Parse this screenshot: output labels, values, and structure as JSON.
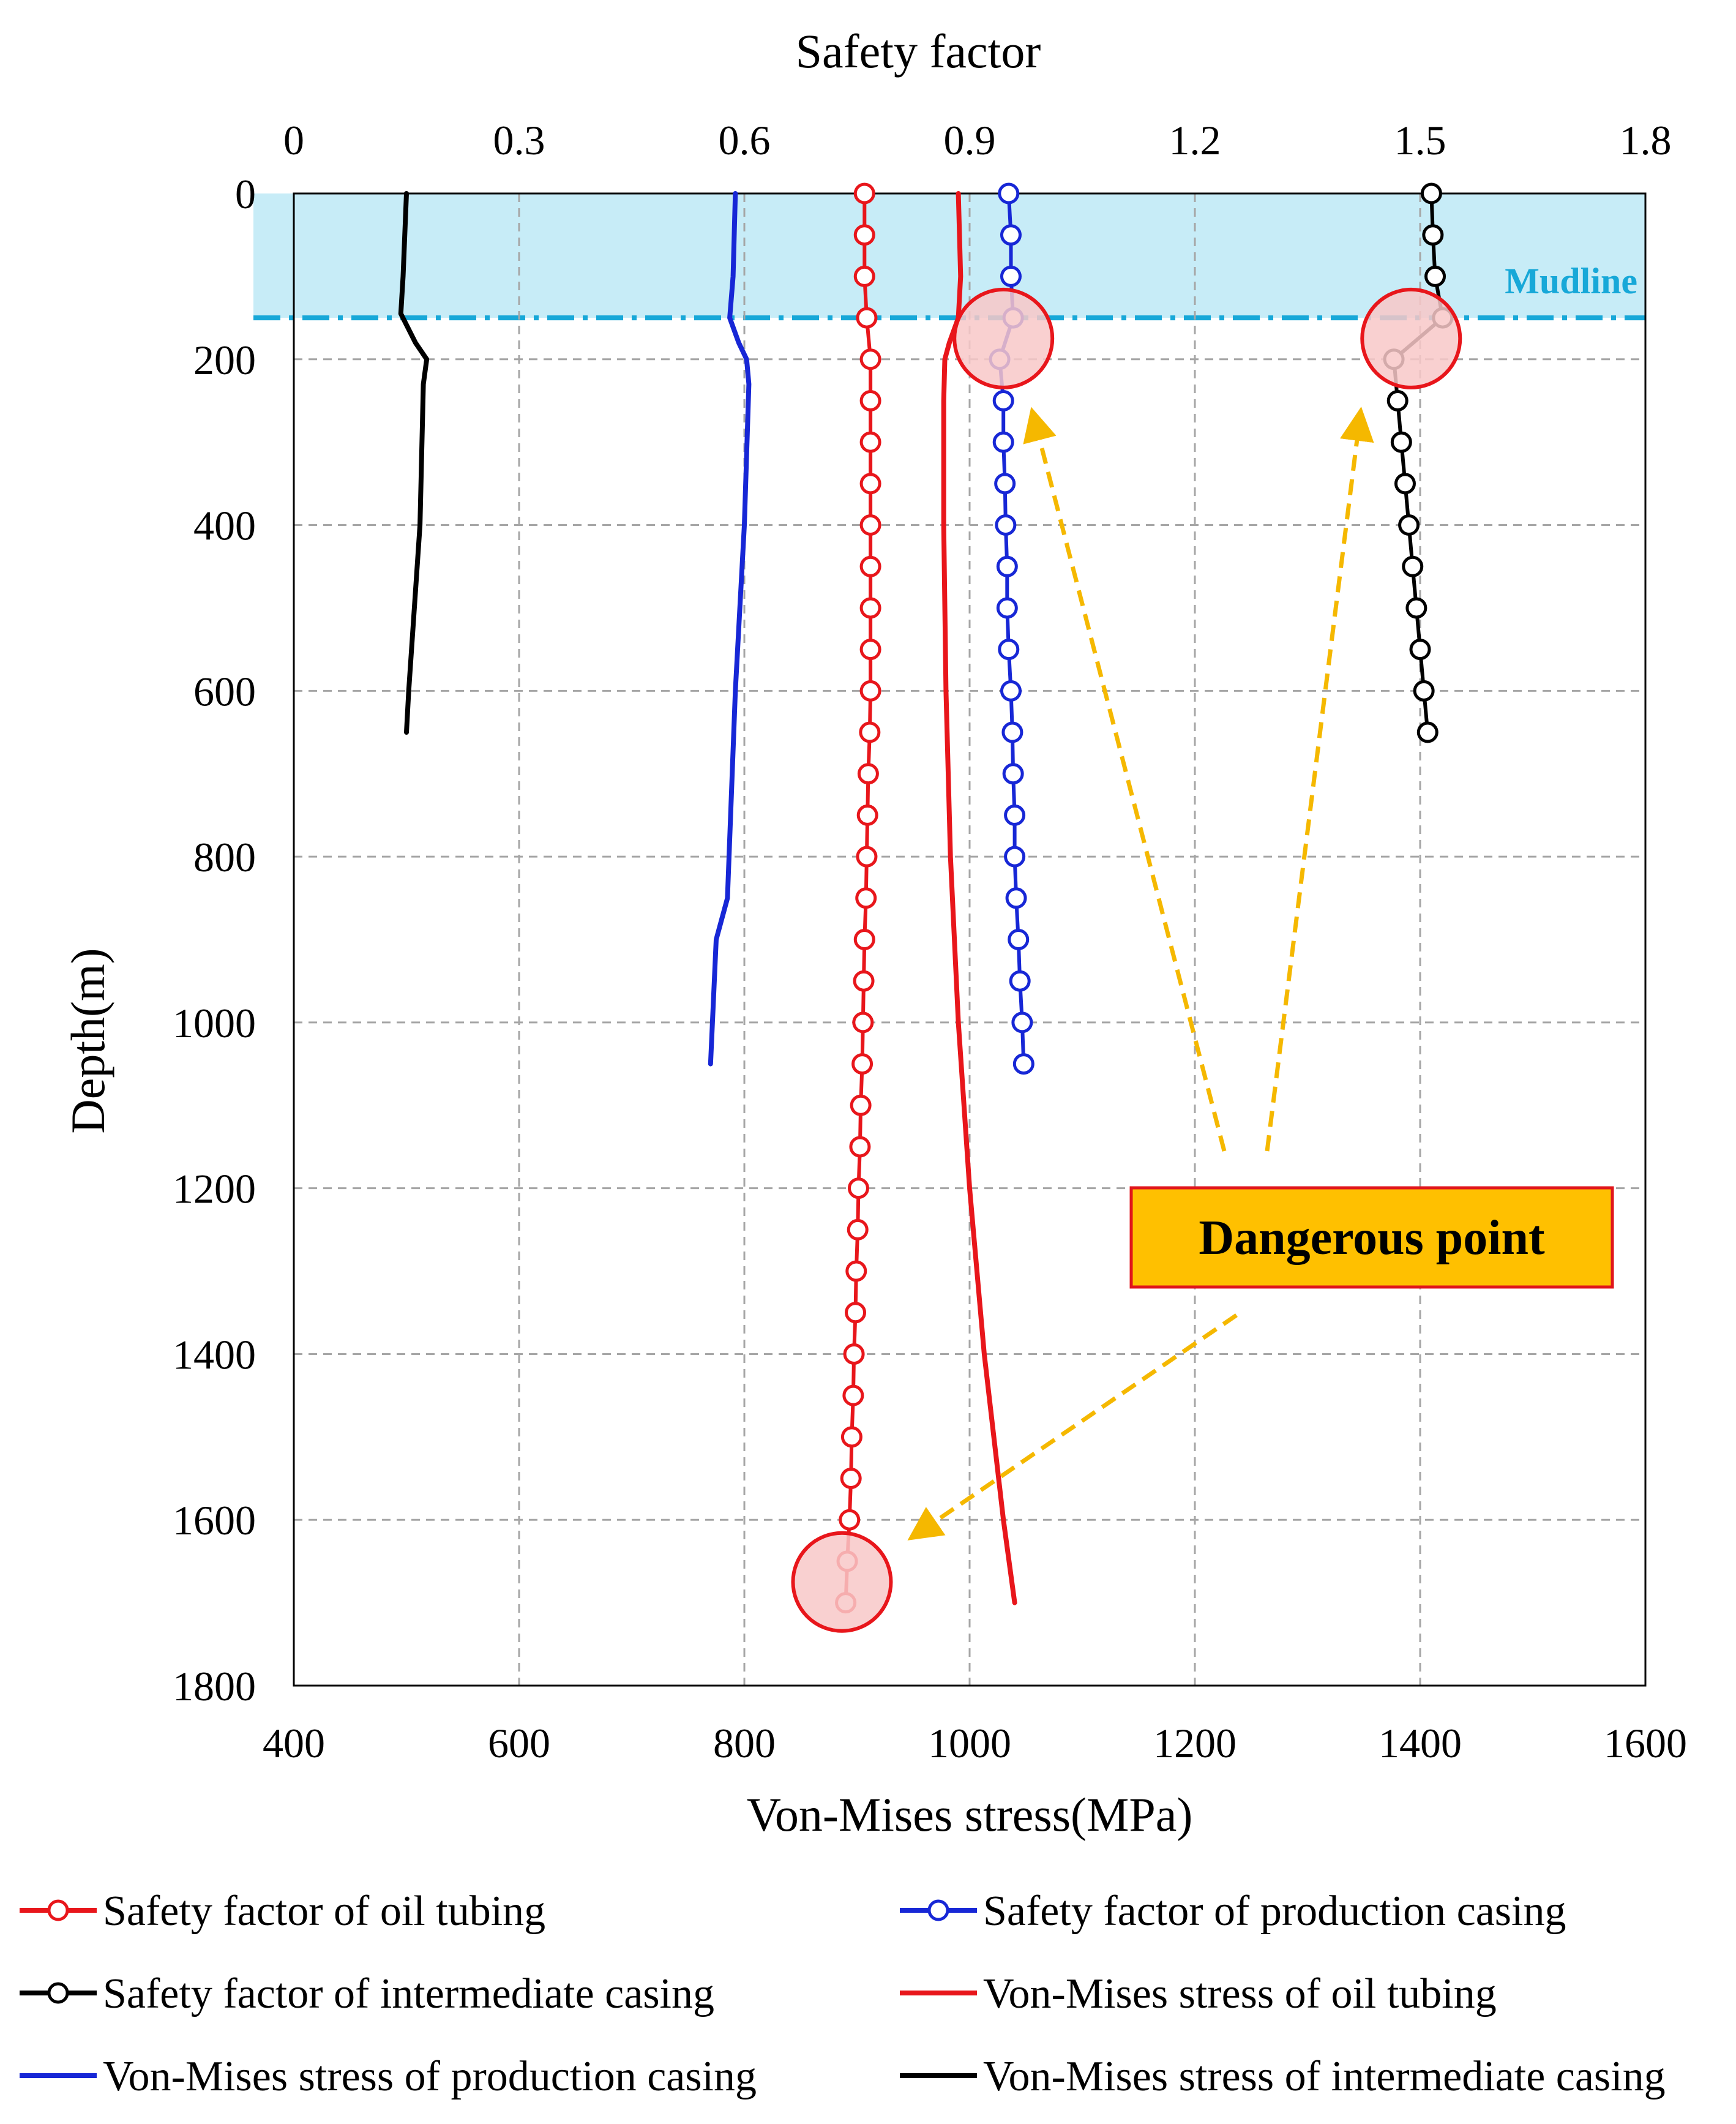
{
  "chart_data": {
    "type": "line",
    "title": "",
    "top_axis": {
      "label": "Safety factor",
      "range": [
        0,
        1.8
      ],
      "ticks": [
        "0",
        "0.3",
        "0.6",
        "0.9",
        "1.2",
        "1.5",
        "1.8"
      ]
    },
    "bottom_axis": {
      "label": "Von-Mises stress(MPa)",
      "range": [
        400,
        1600
      ],
      "ticks": [
        "400",
        "600",
        "800",
        "1000",
        "1200",
        "1400",
        "1600"
      ]
    },
    "y_axis": {
      "label": "Depth(m)",
      "range": [
        0,
        1800
      ],
      "inverted": true,
      "ticks": [
        "0",
        "200",
        "400",
        "600",
        "800",
        "1000",
        "1200",
        "1400",
        "1600",
        "1800"
      ]
    },
    "grid": true,
    "mudline": {
      "label": "Mudline",
      "depth": 150,
      "color": "#17a8d8",
      "band_color": "#c7ecf7"
    },
    "annotation": {
      "text": "Dangerous point",
      "box_color": "#ffc000",
      "border_color": "#e0161b",
      "arrow_color": "#f5b800"
    },
    "danger_points": [
      {
        "axis": "top",
        "x": 0.945,
        "depth": 175
      },
      {
        "axis": "top",
        "x": 1.488,
        "depth": 175
      },
      {
        "axis": "top",
        "x": 0.73,
        "depth": 1675
      }
    ],
    "series": [
      {
        "name": "Safety factor of oil tubing",
        "axis": "top",
        "color": "#e8161b",
        "marker": "circle",
        "depth": [
          0,
          50,
          100,
          150,
          200,
          250,
          300,
          350,
          400,
          450,
          500,
          550,
          600,
          650,
          700,
          750,
          800,
          850,
          900,
          950,
          1000,
          1050,
          1100,
          1150,
          1200,
          1250,
          1300,
          1350,
          1400,
          1450,
          1500,
          1550,
          1600,
          1650,
          1700
        ],
        "values": [
          0.76,
          0.76,
          0.76,
          0.763,
          0.768,
          0.768,
          0.768,
          0.768,
          0.768,
          0.768,
          0.768,
          0.768,
          0.768,
          0.767,
          0.765,
          0.764,
          0.763,
          0.762,
          0.76,
          0.759,
          0.758,
          0.757,
          0.755,
          0.754,
          0.752,
          0.751,
          0.749,
          0.748,
          0.746,
          0.745,
          0.743,
          0.742,
          0.74,
          0.737,
          0.735
        ]
      },
      {
        "name": "Safety factor of production casing",
        "axis": "top",
        "color": "#1727d6",
        "marker": "circle",
        "depth": [
          0,
          50,
          100,
          150,
          200,
          250,
          300,
          350,
          400,
          450,
          500,
          550,
          600,
          650,
          700,
          750,
          800,
          850,
          900,
          950,
          1000,
          1050
        ],
        "values": [
          0.952,
          0.955,
          0.955,
          0.958,
          0.94,
          0.945,
          0.945,
          0.947,
          0.948,
          0.95,
          0.95,
          0.952,
          0.955,
          0.957,
          0.958,
          0.96,
          0.96,
          0.962,
          0.965,
          0.967,
          0.97,
          0.972
        ]
      },
      {
        "name": "Safety factor of intermediate casing",
        "axis": "top",
        "color": "#000000",
        "marker": "circle",
        "depth": [
          0,
          50,
          100,
          150,
          200,
          250,
          300,
          350,
          400,
          450,
          500,
          550,
          600,
          650
        ],
        "values": [
          1.515,
          1.517,
          1.52,
          1.53,
          1.465,
          1.47,
          1.475,
          1.48,
          1.485,
          1.49,
          1.495,
          1.5,
          1.505,
          1.51
        ]
      },
      {
        "name": "Von-Mises stress of oil tubing",
        "axis": "bottom",
        "color": "#e8161b",
        "marker": "none",
        "depth": [
          0,
          100,
          150,
          180,
          200,
          250,
          400,
          600,
          800,
          1000,
          1200,
          1400,
          1600,
          1700
        ],
        "values": [
          990,
          992,
          990,
          982,
          978,
          977,
          977,
          979,
          983,
          990,
          1000,
          1013,
          1030,
          1040
        ]
      },
      {
        "name": "Von-Mises stress of production casing",
        "axis": "bottom",
        "color": "#1727d6",
        "marker": "none",
        "depth": [
          0,
          100,
          150,
          180,
          200,
          230,
          400,
          600,
          850,
          900,
          1050
        ],
        "values": [
          792,
          790,
          787,
          795,
          802,
          804,
          800,
          792,
          785,
          775,
          770
        ]
      },
      {
        "name": "Von-Mises stress of intermediate casing",
        "axis": "bottom",
        "color": "#000000",
        "marker": "none",
        "depth": [
          0,
          100,
          145,
          180,
          200,
          230,
          400,
          600,
          650
        ],
        "values": [
          500,
          497,
          495,
          508,
          518,
          515,
          512,
          502,
          500
        ]
      }
    ]
  }
}
